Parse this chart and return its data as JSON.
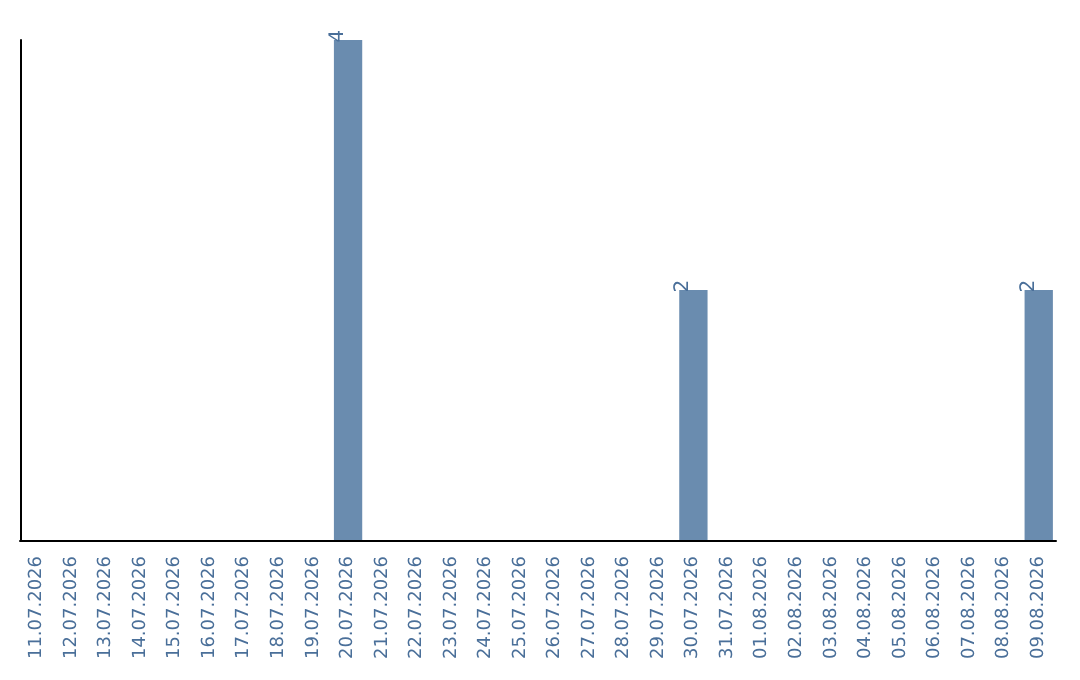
{
  "chart_data": {
    "type": "bar",
    "categories": [
      "11.07.2026",
      "12.07.2026",
      "13.07.2026",
      "14.07.2026",
      "15.07.2026",
      "16.07.2026",
      "17.07.2026",
      "18.07.2026",
      "19.07.2026",
      "20.07.2026",
      "21.07.2026",
      "22.07.2026",
      "23.07.2026",
      "24.07.2026",
      "25.07.2026",
      "26.07.2026",
      "27.07.2026",
      "28.07.2026",
      "29.07.2026",
      "30.07.2026",
      "31.07.2026",
      "01.08.2026",
      "02.08.2026",
      "03.08.2026",
      "04.08.2026",
      "05.08.2026",
      "06.08.2026",
      "07.08.2026",
      "08.08.2026",
      "09.08.2026"
    ],
    "values": [
      0,
      0,
      0,
      0,
      0,
      0,
      0,
      0,
      0,
      4,
      0,
      0,
      0,
      0,
      0,
      0,
      0,
      0,
      0,
      2,
      0,
      0,
      0,
      0,
      0,
      0,
      0,
      0,
      0,
      2
    ],
    "value_labels": [
      null,
      null,
      null,
      null,
      null,
      null,
      null,
      null,
      null,
      "4",
      null,
      null,
      null,
      null,
      null,
      null,
      null,
      null,
      null,
      "2",
      null,
      null,
      null,
      null,
      null,
      null,
      null,
      null,
      null,
      "2"
    ],
    "color": "#6a8caf",
    "tick_labels": "x",
    "grid": false
  }
}
